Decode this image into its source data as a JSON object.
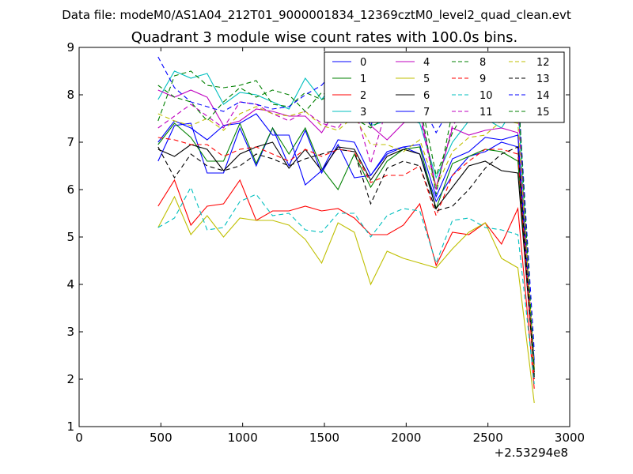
{
  "header": {
    "file_label": "Data file: modeM0/AS1A04_212T01_9000001834_12369cztM0_level2_quad_clean.evt"
  },
  "chart_data": {
    "type": "line",
    "title": "Quadrant 3 module wise count rates with 100.0s bins.",
    "xlabel": "",
    "ylabel": "",
    "x_offset_label": "+2.53294e8",
    "xlim": [
      0,
      3000
    ],
    "ylim": [
      1,
      9
    ],
    "x_ticks": [
      "0",
      "500",
      "1000",
      "1500",
      "2000",
      "2500",
      "3000"
    ],
    "y_ticks": [
      "1",
      "2",
      "3",
      "4",
      "5",
      "6",
      "7",
      "8",
      "9"
    ],
    "grid": false,
    "legend_position": "top-right",
    "x": [
      483,
      583,
      683,
      783,
      883,
      983,
      1083,
      1183,
      1283,
      1383,
      1483,
      1583,
      1683,
      1783,
      1883,
      1983,
      2083,
      2183,
      2283,
      2383,
      2483,
      2583,
      2683,
      2783
    ],
    "series": [
      {
        "name": "0",
        "color": "#0000ff",
        "dash": "solid",
        "values": [
          6.6,
          7.35,
          7.4,
          6.35,
          6.35,
          7.3,
          6.5,
          7.3,
          6.5,
          7.25,
          6.35,
          6.95,
          6.25,
          6.3,
          6.75,
          6.9,
          6.75,
          5.75,
          6.3,
          6.7,
          6.8,
          7.0,
          6.9,
          2.4
        ]
      },
      {
        "name": "1",
        "color": "#008000",
        "dash": "solid",
        "values": [
          6.95,
          7.4,
          7.1,
          6.6,
          6.6,
          7.4,
          6.55,
          7.3,
          6.75,
          7.3,
          6.45,
          6.0,
          6.75,
          6.05,
          6.6,
          6.85,
          6.9,
          5.6,
          6.55,
          6.7,
          6.85,
          6.8,
          6.6,
          2.1
        ]
      },
      {
        "name": "2",
        "color": "#ff0000",
        "dash": "solid",
        "values": [
          5.65,
          6.2,
          5.25,
          5.65,
          5.7,
          6.2,
          5.35,
          5.55,
          5.55,
          5.65,
          5.55,
          5.6,
          5.4,
          5.05,
          5.05,
          5.25,
          5.7,
          4.4,
          5.1,
          5.05,
          5.3,
          4.85,
          5.6,
          1.8
        ]
      },
      {
        "name": "3",
        "color": "#00bfbf",
        "dash": "solid",
        "values": [
          7.9,
          8.5,
          8.35,
          8.45,
          7.8,
          8.05,
          8.0,
          7.85,
          7.7,
          8.35,
          7.9,
          8.35,
          8.25,
          7.35,
          7.45,
          7.5,
          7.4,
          6.25,
          7.0,
          7.45,
          7.5,
          7.3,
          7.85,
          2.0
        ]
      },
      {
        "name": "4",
        "color": "#bf00bf",
        "dash": "solid",
        "values": [
          8.1,
          7.95,
          8.1,
          7.95,
          7.35,
          7.45,
          7.7,
          7.65,
          7.55,
          7.55,
          7.2,
          7.75,
          7.85,
          7.35,
          7.05,
          7.4,
          7.65,
          6.05,
          7.3,
          7.15,
          7.25,
          7.3,
          7.2,
          2.25
        ]
      },
      {
        "name": "5",
        "color": "#bfbf00",
        "dash": "solid",
        "values": [
          5.2,
          5.85,
          5.05,
          5.45,
          5.0,
          5.4,
          5.35,
          5.35,
          5.25,
          4.95,
          4.45,
          5.3,
          5.1,
          4.0,
          4.7,
          4.55,
          4.45,
          4.35,
          4.75,
          5.1,
          5.3,
          4.55,
          4.35,
          1.5
        ]
      },
      {
        "name": "6",
        "color": "#000000",
        "dash": "solid",
        "values": [
          6.85,
          6.7,
          6.95,
          6.85,
          6.4,
          6.75,
          6.9,
          7.0,
          6.45,
          6.85,
          6.4,
          6.9,
          6.85,
          6.2,
          6.7,
          6.85,
          6.75,
          5.6,
          6.05,
          6.5,
          6.6,
          6.4,
          6.35,
          2.15
        ]
      },
      {
        "name": "7",
        "color": "#0000ff",
        "dash": "solid",
        "values": [
          7.0,
          7.45,
          7.3,
          7.05,
          7.35,
          7.4,
          7.6,
          7.15,
          7.15,
          6.1,
          6.4,
          7.05,
          7.0,
          6.3,
          6.8,
          6.9,
          6.95,
          5.85,
          6.65,
          6.8,
          7.1,
          7.05,
          7.15,
          2.3
        ]
      },
      {
        "name": "8",
        "color": "#008000",
        "dash": "dashed",
        "values": [
          7.45,
          8.4,
          8.5,
          8.2,
          8.15,
          8.2,
          8.3,
          7.8,
          7.75,
          8.05,
          7.9,
          8.05,
          8.1,
          7.35,
          7.8,
          7.75,
          8.0,
          6.3,
          7.2,
          7.8,
          8.05,
          8.1,
          8.2,
          2.1
        ]
      },
      {
        "name": "9",
        "color": "#ff0000",
        "dash": "dashed",
        "values": [
          7.1,
          7.05,
          6.95,
          6.95,
          6.7,
          6.85,
          6.9,
          6.75,
          6.6,
          6.85,
          6.7,
          6.85,
          6.8,
          6.15,
          6.3,
          6.3,
          6.5,
          5.45,
          6.3,
          6.6,
          6.85,
          6.85,
          6.75,
          2.0
        ]
      },
      {
        "name": "10",
        "color": "#00bfbf",
        "dash": "dashed",
        "values": [
          5.2,
          5.4,
          6.05,
          5.15,
          5.2,
          5.75,
          5.9,
          5.45,
          5.5,
          5.15,
          5.1,
          5.5,
          5.5,
          5.0,
          5.45,
          5.6,
          5.55,
          4.45,
          5.35,
          5.4,
          5.2,
          5.15,
          5.05,
          1.9
        ]
      },
      {
        "name": "11",
        "color": "#bf00bf",
        "dash": "dashed",
        "values": [
          7.3,
          7.55,
          7.8,
          7.55,
          7.3,
          7.85,
          7.8,
          7.6,
          7.45,
          7.65,
          7.4,
          7.3,
          7.75,
          6.55,
          7.75,
          7.55,
          7.55,
          6.0,
          7.35,
          7.75,
          7.75,
          7.65,
          7.75,
          2.2
        ]
      },
      {
        "name": "12",
        "color": "#bfbf00",
        "dash": "dashed",
        "values": [
          7.6,
          7.45,
          7.35,
          7.5,
          7.25,
          7.6,
          7.75,
          7.6,
          7.55,
          7.65,
          7.35,
          7.25,
          7.55,
          6.95,
          6.95,
          6.8,
          7.05,
          6.05,
          6.8,
          7.1,
          7.15,
          7.45,
          7.4,
          2.25
        ]
      },
      {
        "name": "13",
        "color": "#000000",
        "dash": "dashed",
        "values": [
          6.9,
          6.25,
          6.75,
          6.5,
          6.4,
          6.5,
          6.75,
          6.65,
          6.5,
          6.65,
          6.75,
          6.85,
          6.8,
          5.7,
          6.45,
          6.6,
          6.5,
          5.55,
          5.65,
          6.0,
          6.45,
          6.75,
          6.9,
          2.05
        ]
      },
      {
        "name": "14",
        "color": "#0000ff",
        "dash": "dashed",
        "values": [
          8.8,
          8.15,
          7.85,
          7.75,
          7.65,
          7.85,
          7.8,
          7.7,
          7.75,
          8.0,
          8.2,
          8.6,
          7.95,
          7.35,
          8.15,
          8.1,
          7.9,
          7.2,
          7.8,
          8.25,
          8.6,
          8.45,
          8.15,
          2.6
        ]
      },
      {
        "name": "15",
        "color": "#008000",
        "dash": "dashed",
        "values": [
          8.2,
          7.95,
          7.85,
          7.45,
          7.85,
          8.15,
          7.95,
          8.1,
          8.0,
          7.65,
          8.05,
          7.85,
          7.5,
          7.3,
          7.55,
          7.7,
          7.85,
          5.9,
          7.65,
          7.75,
          8.1,
          8.0,
          8.15,
          2.2
        ]
      }
    ]
  }
}
